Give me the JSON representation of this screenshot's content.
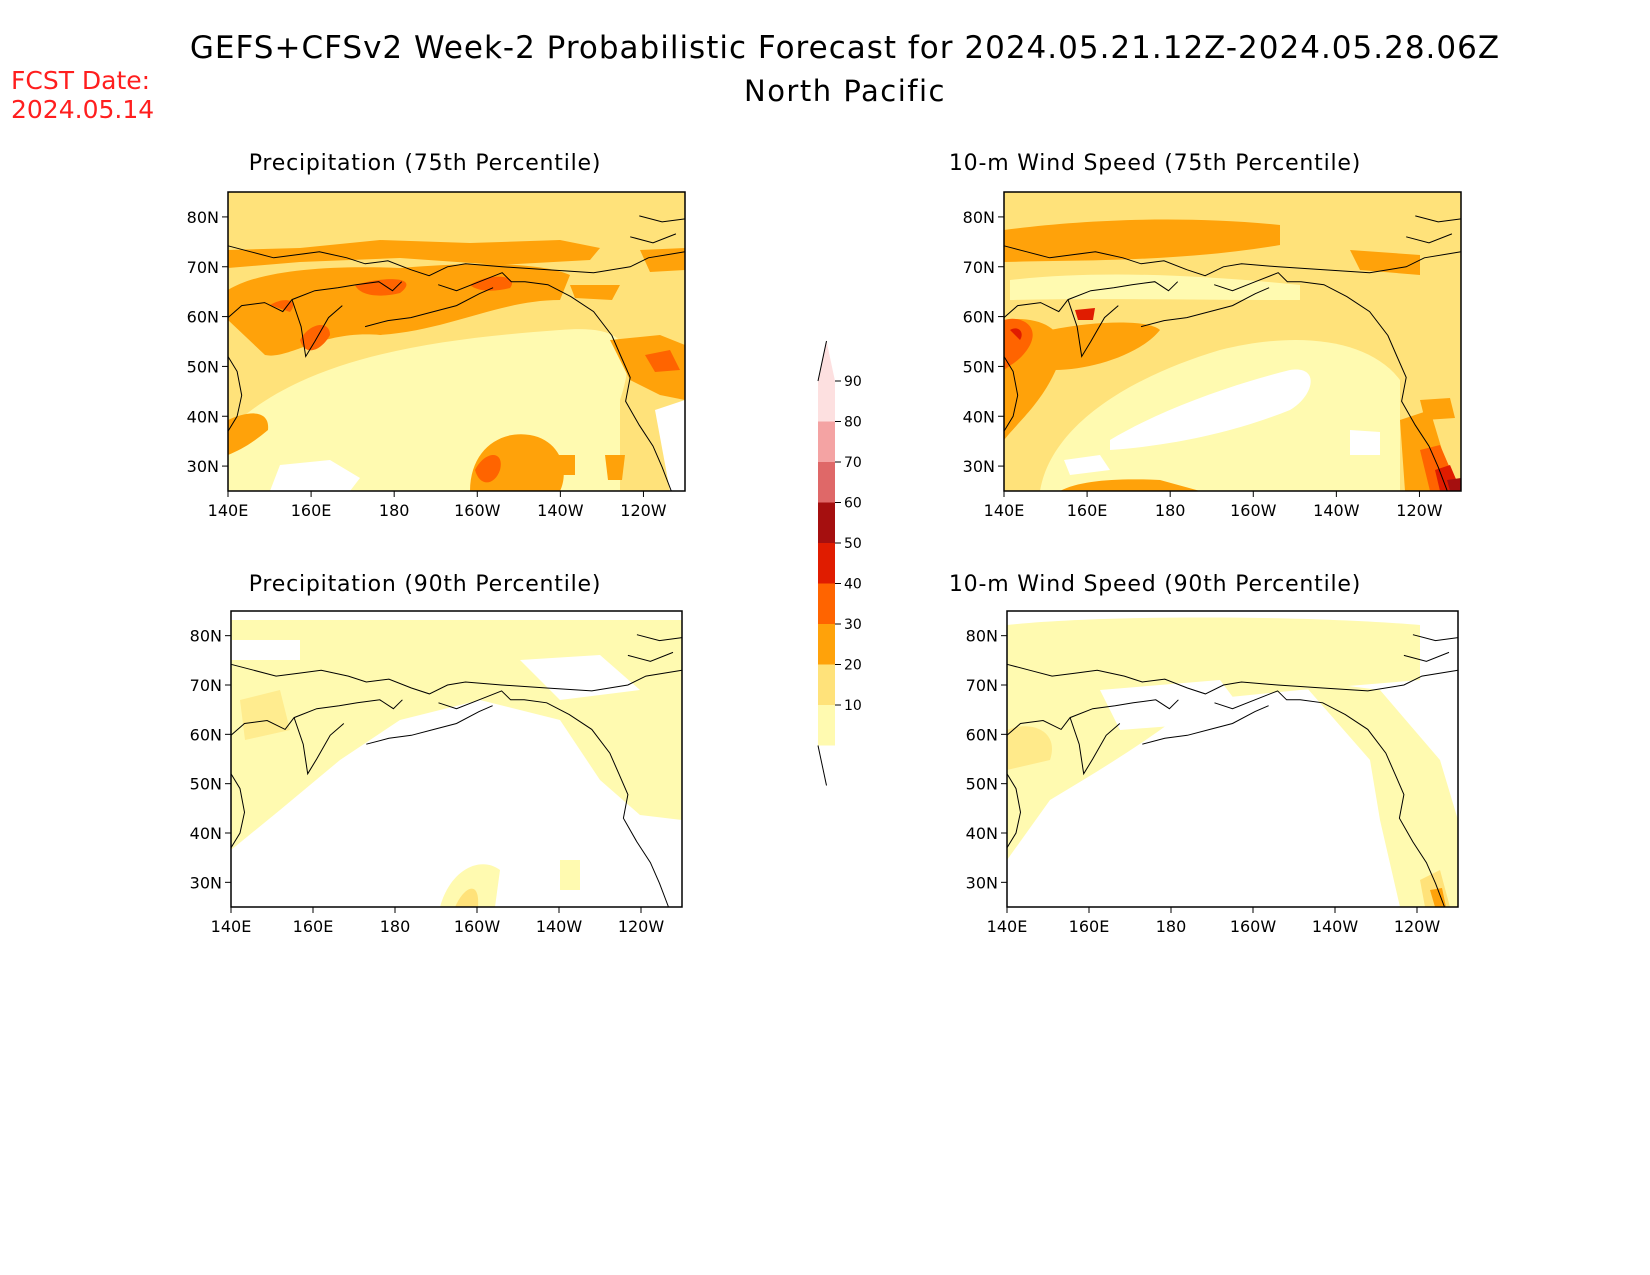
{
  "header": {
    "title": "GEFS+CFSv2 Week-2 Probabilistic Forecast for 2024.05.21.12Z-2024.05.28.06Z",
    "subtitle": "North Pacific",
    "fcst_label": "FCST Date:",
    "fcst_date": "2024.05.14"
  },
  "panels": [
    {
      "title": "Precipitation (75th Percentile)"
    },
    {
      "title": "10-m Wind Speed (75th Percentile)"
    },
    {
      "title": "Precipitation (90th Percentile)"
    },
    {
      "title": "10-m Wind Speed (90th Percentile)"
    }
  ],
  "axes": {
    "lat_labels": [
      "80N",
      "70N",
      "60N",
      "50N",
      "40N",
      "30N"
    ],
    "lon_labels": [
      "140E",
      "160E",
      "180",
      "160W",
      "140W",
      "120W"
    ]
  },
  "colorbar": {
    "labels": [
      "90",
      "80",
      "70",
      "60",
      "50",
      "40",
      "30",
      "20",
      "10"
    ],
    "colors": [
      "#fde0e0",
      "#f4a3a3",
      "#df6868",
      "#a50f0f",
      "#e01c00",
      "#ff6400",
      "#ffa20a",
      "#ffe27a",
      "#fffab0"
    ]
  }
}
